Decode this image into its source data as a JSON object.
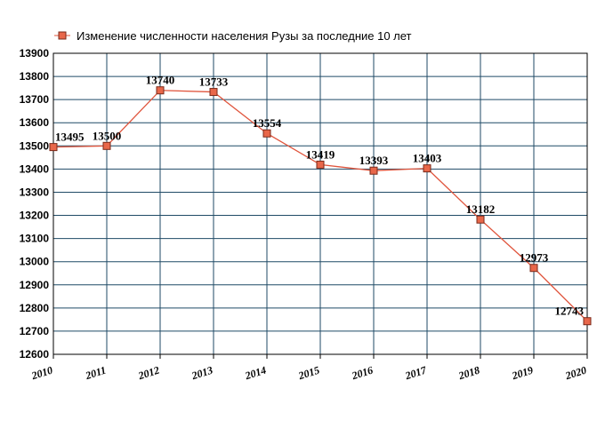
{
  "chart_data": {
    "type": "line",
    "x": [
      "2010",
      "2011",
      "2012",
      "2013",
      "2014",
      "2015",
      "2016",
      "2017",
      "2018",
      "2019",
      "2020"
    ],
    "series": [
      {
        "name": "Изменение численности населения Рузы за последние 10 лет",
        "values": [
          13495,
          13500,
          13740,
          13733,
          13554,
          13419,
          13393,
          13403,
          13182,
          12973,
          12743
        ]
      }
    ],
    "data_labels": [
      "13495",
      "13500",
      "13740",
      "13733",
      "13554",
      "13419",
      "13393",
      "13403",
      "13182",
      "12973",
      "12743"
    ],
    "y_ticks": [
      "12600",
      "12700",
      "12800",
      "12900",
      "13000",
      "13100",
      "13200",
      "13300",
      "13400",
      "13500",
      "13600",
      "13700",
      "13800",
      "13900"
    ],
    "ylim": [
      12600,
      13900
    ],
    "grid": true,
    "legend_position": "top-left",
    "colors": {
      "line": "#e0553d",
      "marker_fill": "#e8674a",
      "marker_stroke": "#7a2a1a",
      "grid": "#1f4a66",
      "frame": "#000000"
    }
  }
}
